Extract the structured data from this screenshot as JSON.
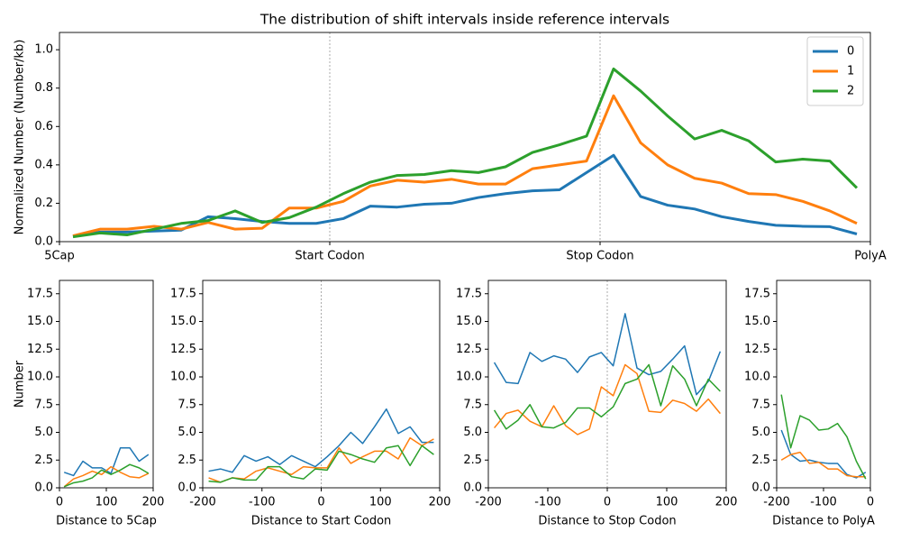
{
  "chart_data": [
    {
      "type": "line",
      "title": "The distribution of shift intervals inside reference intervals",
      "y_label": "Normalized Number (Number/kb)",
      "legend": "upper right",
      "line_width": 3,
      "x": [
        0.05,
        0.15,
        0.25,
        0.35,
        0.45,
        0.55,
        0.65,
        0.75,
        0.85,
        0.95,
        1.05,
        1.15,
        1.25,
        1.35,
        1.45,
        1.55,
        1.65,
        1.75,
        1.85,
        1.95,
        2.05,
        2.15,
        2.25,
        2.35,
        2.45,
        2.55,
        2.65,
        2.75,
        2.85,
        2.95
      ],
      "xlim": [
        0,
        3
      ],
      "xticks": [
        {
          "value": 0,
          "label": "5Cap"
        },
        {
          "value": 1,
          "label": "Start Codon"
        },
        {
          "value": 2,
          "label": "Stop Codon"
        },
        {
          "value": 3,
          "label": "PolyA"
        }
      ],
      "vlines": [
        1,
        2
      ],
      "ylim": [
        0,
        1.09
      ],
      "yticks": [
        {
          "value": 0,
          "label": "0.0"
        },
        0.2,
        0.4,
        0.6,
        0.8,
        {
          "value": 1,
          "label": "1.0"
        }
      ],
      "series": [
        {
          "name": "0",
          "color": "#1f77b4",
          "values": [
            0.03,
            0.05,
            0.05,
            0.055,
            0.06,
            0.13,
            0.12,
            0.105,
            0.095,
            0.095,
            0.12,
            0.185,
            0.18,
            0.195,
            0.2,
            0.23,
            0.25,
            0.265,
            0.27,
            0.36,
            0.45,
            0.235,
            0.19,
            0.17,
            0.13,
            0.105,
            0.085,
            0.08,
            0.078,
            0.04
          ]
        },
        {
          "name": "1",
          "color": "#ff7f0e",
          "values": [
            0.03,
            0.065,
            0.065,
            0.08,
            0.065,
            0.1,
            0.065,
            0.07,
            0.175,
            0.175,
            0.21,
            0.29,
            0.32,
            0.31,
            0.325,
            0.3,
            0.3,
            0.38,
            0.4,
            0.42,
            0.76,
            0.515,
            0.4,
            0.33,
            0.305,
            0.25,
            0.245,
            0.21,
            0.16,
            0.095
          ]
        },
        {
          "name": "2",
          "color": "#2ca02c",
          "values": [
            0.025,
            0.045,
            0.035,
            0.065,
            0.095,
            0.11,
            0.16,
            0.1,
            0.125,
            0.18,
            0.25,
            0.31,
            0.345,
            0.35,
            0.37,
            0.36,
            0.39,
            0.465,
            0.505,
            0.55,
            0.9,
            0.785,
            0.655,
            0.535,
            0.58,
            0.525,
            0.415,
            0.43,
            0.42,
            0.28
          ]
        }
      ]
    },
    {
      "type": "line",
      "y_label": "Number",
      "x_label": "Distance to 5Cap",
      "line_width": 1.5,
      "x": [
        10,
        30,
        50,
        70,
        90,
        110,
        130,
        150,
        170,
        190
      ],
      "xlim": [
        0,
        200
      ],
      "xticks": [
        0,
        100,
        200
      ],
      "ylim": [
        0,
        18.7
      ],
      "yticks": [
        {
          "value": 0,
          "label": "0.0"
        },
        2.5,
        {
          "value": 5,
          "label": "5.0"
        },
        7.5,
        {
          "value": 10,
          "label": "10.0"
        },
        12.5,
        {
          "value": 15,
          "label": "15.0"
        },
        17.5
      ],
      "series": [
        {
          "color": "#1f77b4",
          "values": [
            1.4,
            1.1,
            2.4,
            1.8,
            1.8,
            1.3,
            3.6,
            3.6,
            2.4,
            3.0
          ]
        },
        {
          "color": "#ff7f0e",
          "values": [
            0.1,
            0.8,
            1.1,
            1.5,
            1.2,
            1.9,
            1.4,
            1.0,
            0.9,
            1.3
          ]
        },
        {
          "color": "#2ca02c",
          "values": [
            0.1,
            0.45,
            0.6,
            0.9,
            1.6,
            1.2,
            1.6,
            2.1,
            1.8,
            1.3
          ]
        }
      ]
    },
    {
      "type": "line",
      "x_label": "Distance to Start Codon",
      "line_width": 1.5,
      "x": [
        -190,
        -170,
        -150,
        -130,
        -110,
        -90,
        -70,
        -50,
        -30,
        -10,
        10,
        30,
        50,
        70,
        90,
        110,
        130,
        150,
        170,
        190
      ],
      "xlim": [
        -200,
        200
      ],
      "xticks": [
        -200,
        -100,
        0,
        100,
        200
      ],
      "vlines": [
        0
      ],
      "ylim": [
        0,
        18.7
      ],
      "yticks": [
        {
          "value": 0,
          "label": "0.0"
        },
        2.5,
        {
          "value": 5,
          "label": "5.0"
        },
        7.5,
        {
          "value": 10,
          "label": "10.0"
        },
        12.5,
        {
          "value": 15,
          "label": "15.0"
        },
        17.5
      ],
      "series": [
        {
          "color": "#1f77b4",
          "values": [
            1.5,
            1.7,
            1.4,
            2.9,
            2.4,
            2.8,
            2.1,
            2.9,
            2.4,
            1.9,
            2.8,
            3.8,
            5.0,
            4.0,
            5.5,
            7.1,
            4.9,
            5.5,
            4.1,
            4.1
          ]
        },
        {
          "color": "#ff7f0e",
          "values": [
            0.9,
            0.5,
            0.9,
            0.8,
            1.5,
            1.8,
            1.5,
            1.2,
            1.9,
            1.8,
            1.8,
            3.6,
            2.2,
            2.8,
            3.3,
            3.3,
            2.6,
            4.5,
            3.8,
            4.4
          ]
        },
        {
          "color": "#2ca02c",
          "values": [
            0.6,
            0.5,
            0.9,
            0.7,
            0.7,
            1.9,
            1.9,
            1.0,
            0.8,
            1.7,
            1.6,
            3.3,
            3.0,
            2.6,
            2.3,
            3.6,
            3.8,
            2.0,
            3.8,
            3.0
          ]
        }
      ]
    },
    {
      "type": "line",
      "x_label": "Distance to Stop Codon",
      "line_width": 1.5,
      "x": [
        -190,
        -170,
        -150,
        -130,
        -110,
        -90,
        -70,
        -50,
        -30,
        -10,
        10,
        30,
        50,
        70,
        90,
        110,
        130,
        150,
        170,
        190
      ],
      "xlim": [
        -200,
        200
      ],
      "xticks": [
        -200,
        -100,
        0,
        100,
        200
      ],
      "vlines": [
        0
      ],
      "ylim": [
        0,
        18.7
      ],
      "yticks": [
        {
          "value": 0,
          "label": "0.0"
        },
        2.5,
        {
          "value": 5,
          "label": "5.0"
        },
        7.5,
        {
          "value": 10,
          "label": "10.0"
        },
        12.5,
        {
          "value": 15,
          "label": "15.0"
        },
        17.5
      ],
      "series": [
        {
          "color": "#1f77b4",
          "values": [
            11.3,
            9.5,
            9.4,
            12.2,
            11.4,
            11.9,
            11.6,
            10.4,
            11.8,
            12.2,
            11.0,
            15.7,
            10.8,
            10.2,
            10.5,
            11.6,
            12.8,
            8.4,
            9.6,
            12.3
          ]
        },
        {
          "color": "#ff7f0e",
          "values": [
            5.4,
            6.7,
            7.0,
            6.0,
            5.5,
            7.4,
            5.6,
            4.8,
            5.3,
            9.1,
            8.3,
            11.1,
            10.3,
            6.9,
            6.8,
            7.9,
            7.6,
            6.9,
            8.0,
            6.7
          ]
        },
        {
          "color": "#2ca02c",
          "values": [
            7.0,
            5.3,
            6.1,
            7.5,
            5.5,
            5.4,
            5.9,
            7.2,
            7.2,
            6.4,
            7.3,
            9.4,
            9.8,
            11.1,
            7.4,
            11.0,
            9.8,
            7.4,
            9.8,
            8.7
          ]
        }
      ]
    },
    {
      "type": "line",
      "x_label": "Distance to PolyA",
      "line_width": 1.5,
      "x": [
        -190,
        -170,
        -150,
        -130,
        -110,
        -90,
        -70,
        -50,
        -30,
        -10
      ],
      "xlim": [
        -200,
        0
      ],
      "xticks": [
        -200,
        -100,
        0
      ],
      "ylim": [
        0,
        18.7
      ],
      "yticks": [
        {
          "value": 0,
          "label": "0.0"
        },
        2.5,
        {
          "value": 5,
          "label": "5.0"
        },
        7.5,
        {
          "value": 10,
          "label": "10.0"
        },
        12.5,
        {
          "value": 15,
          "label": "15.0"
        },
        17.5
      ],
      "series": [
        {
          "color": "#1f77b4",
          "values": [
            5.2,
            3.0,
            2.4,
            2.5,
            2.3,
            2.2,
            2.2,
            1.2,
            0.9,
            1.4
          ]
        },
        {
          "color": "#ff7f0e",
          "values": [
            2.5,
            3.0,
            3.2,
            2.2,
            2.3,
            1.7,
            1.7,
            1.1,
            1.0,
            1.0
          ]
        },
        {
          "color": "#2ca02c",
          "values": [
            8.4,
            3.6,
            6.5,
            6.1,
            5.2,
            5.3,
            5.8,
            4.6,
            2.4,
            0.8
          ]
        }
      ]
    }
  ]
}
